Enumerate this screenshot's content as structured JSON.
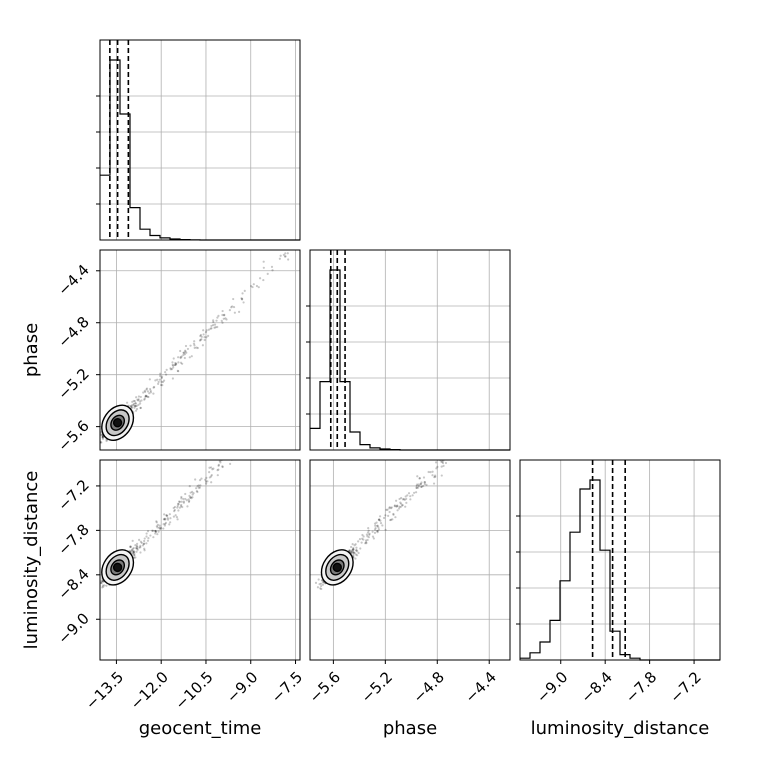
{
  "chart_data": {
    "type": "corner",
    "parameters": [
      "geocent_time",
      "phase",
      "luminosity_distance"
    ],
    "axis_labels": {
      "geocent_time": "geocent_time",
      "phase": "phase",
      "luminosity_distance": "luminosity_distance"
    },
    "ranges": {
      "geocent_time": [
        -14.05,
        -7.35
      ],
      "phase": [
        -5.78,
        -4.24
      ],
      "luminosity_distance": [
        -9.55,
        -6.85
      ]
    },
    "ticks": {
      "geocent_time": [
        -13.5,
        -12.0,
        -10.5,
        -9.0,
        -7.5
      ],
      "phase": [
        -5.6,
        -5.2,
        -4.8,
        -4.4
      ],
      "luminosity_distance": [
        -9.0,
        -8.4,
        -7.8,
        -7.2
      ]
    },
    "tick_labels": {
      "geocent_time": [
        "−13.5",
        "−12.0",
        "−10.5",
        "−9.0",
        "−7.5"
      ],
      "phase": [
        "−5.6",
        "−5.2",
        "−4.8",
        "−4.4"
      ],
      "luminosity_distance": [
        "−9.0",
        "−8.4",
        "−7.8",
        "−7.2"
      ]
    },
    "histograms": {
      "geocent_time": {
        "bins": 20,
        "counts": [
          0.36,
          1.0,
          0.7,
          0.18,
          0.06,
          0.025,
          0.012,
          0.006,
          0.002,
          0.001,
          0,
          0,
          0,
          0,
          0,
          0,
          0,
          0,
          0,
          0
        ],
        "quantiles": [
          -13.72,
          -13.46,
          -13.1
        ]
      },
      "phase": {
        "bins": 20,
        "counts": [
          0.12,
          0.38,
          1.0,
          0.38,
          0.1,
          0.03,
          0.012,
          0.006,
          0.002,
          0,
          0,
          0,
          0,
          0,
          0,
          0,
          0,
          0,
          0,
          0
        ],
        "quantiles": [
          -5.62,
          -5.57,
          -5.51
        ]
      },
      "luminosity_distance": {
        "bins": 20,
        "counts": [
          0.01,
          0.04,
          0.1,
          0.22,
          0.44,
          0.71,
          0.95,
          1.0,
          0.61,
          0.16,
          0.03,
          0.01,
          0,
          0,
          0,
          0,
          0,
          0,
          0,
          0
        ],
        "quantiles": [
          -8.57,
          -8.3,
          -8.13
        ]
      }
    },
    "grid": true,
    "density_levels": 4
  }
}
